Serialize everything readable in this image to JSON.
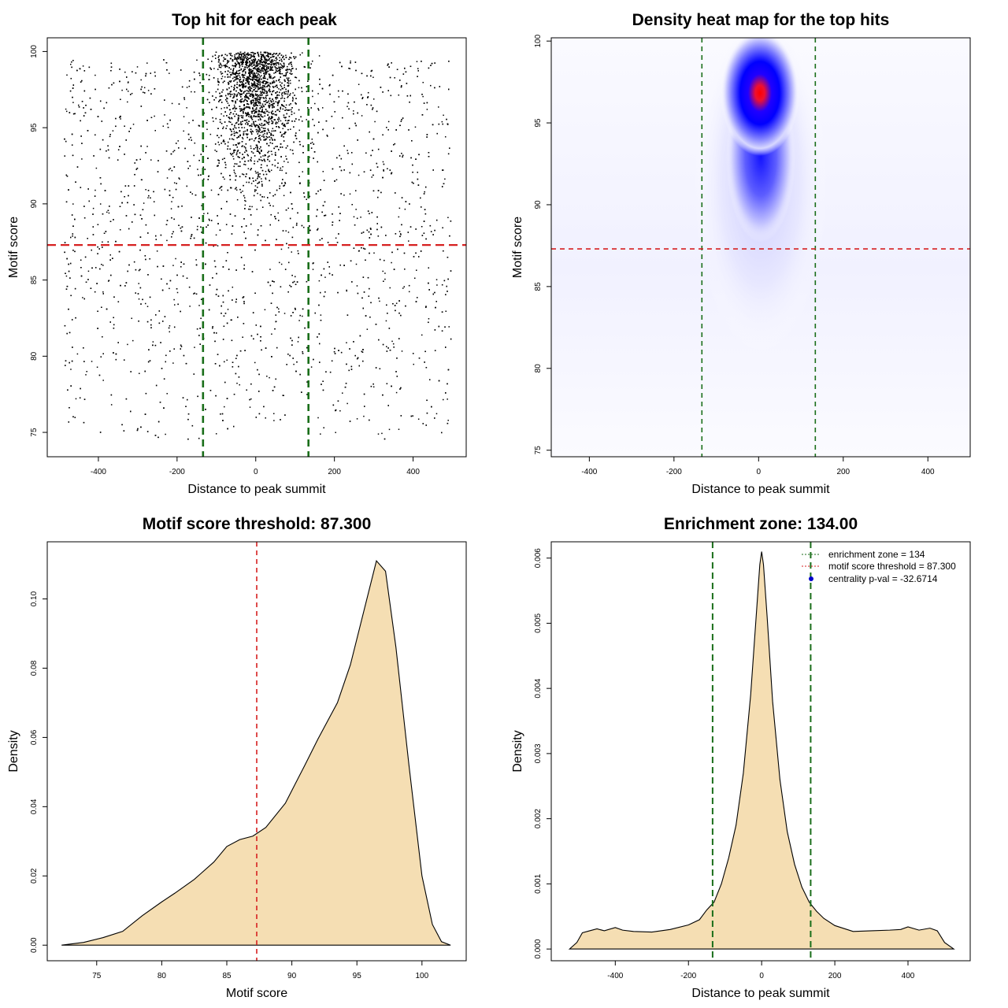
{
  "chart_data": [
    {
      "id": "scatter",
      "type": "scatter",
      "title": "Top hit for each peak",
      "xlabel": "Distance to peak summit",
      "ylabel": "Motif score",
      "xlim": [
        -530,
        535
      ],
      "ylim": [
        73.4,
        100.9
      ],
      "xticks": [
        -400,
        -200,
        0,
        200,
        400
      ],
      "yticks": [
        75,
        80,
        85,
        90,
        95,
        100
      ],
      "colors": {
        "points": "#000000",
        "zone": "#1a6e1a",
        "threshold": "#d62020"
      },
      "vlines": [
        -134,
        134
      ],
      "hline": 87.3,
      "points_description": "dense cluster near x=0 y 90-100, sparse uniform background",
      "n_points": 6500
    },
    {
      "id": "heatmap",
      "type": "heatmap",
      "title": "Density heat map for the top hits",
      "xlabel": "Distance to peak summit",
      "ylabel": "Motif score",
      "xlim": [
        -490,
        500
      ],
      "ylim": [
        74.6,
        100.2
      ],
      "xticks": [
        -400,
        -200,
        0,
        200,
        400
      ],
      "yticks": [
        75,
        80,
        85,
        90,
        95,
        100
      ],
      "colors": {
        "low": "#ffffff",
        "mid": "#0000ff",
        "high": "#ff0000",
        "zone": "#1a6e1a",
        "threshold": "#d62020"
      },
      "peak": {
        "x": 0,
        "y": 96.8
      },
      "vlines": [
        -134,
        134
      ],
      "hline": 87.3
    },
    {
      "id": "score_density",
      "type": "area",
      "title": "Motif score threshold: 87.300",
      "xlabel": "Motif score",
      "ylabel": "Density",
      "xlim": [
        71.2,
        103.4
      ],
      "ylim": [
        -0.0045,
        0.1165
      ],
      "xticks": [
        75,
        80,
        85,
        90,
        95,
        100
      ],
      "yticks": [
        0.0,
        0.02,
        0.04,
        0.06,
        0.08,
        0.1
      ],
      "ytick_labels": [
        "0.00",
        "0.02",
        "0.04",
        "0.06",
        "0.08",
        "0.10"
      ],
      "colors": {
        "fill": "#f5deb3",
        "line": "#000000",
        "threshold": "#d62020"
      },
      "vline": 87.3,
      "x": [
        72.3,
        74,
        75.5,
        77,
        78.5,
        80,
        81,
        82.5,
        84,
        85,
        86,
        87,
        88,
        89.5,
        91,
        92,
        93.5,
        94.5,
        95.5,
        96.5,
        97.2,
        98,
        99,
        100,
        100.8,
        101.5,
        102.2
      ],
      "y": [
        0.0,
        0.0008,
        0.0022,
        0.004,
        0.0085,
        0.0125,
        0.015,
        0.019,
        0.024,
        0.0285,
        0.0305,
        0.0315,
        0.034,
        0.041,
        0.052,
        0.0595,
        0.07,
        0.081,
        0.096,
        0.111,
        0.108,
        0.086,
        0.052,
        0.02,
        0.006,
        0.001,
        0.0
      ]
    },
    {
      "id": "distance_density",
      "type": "area",
      "title": "Enrichment zone: 134.00",
      "xlabel": "Distance to peak summit",
      "ylabel": "Density",
      "xlim": [
        -575,
        570
      ],
      "ylim": [
        -0.00018,
        0.00625
      ],
      "xticks": [
        -400,
        -200,
        0,
        200,
        400
      ],
      "yticks": [
        0.0,
        0.001,
        0.002,
        0.003,
        0.004,
        0.005,
        0.006
      ],
      "ytick_labels": [
        "0.000",
        "0.001",
        "0.002",
        "0.003",
        "0.004",
        "0.005",
        "0.006"
      ],
      "colors": {
        "fill": "#f5deb3",
        "line": "#000000",
        "zone": "#1a6e1a",
        "threshold": "#d62020",
        "point": "#0000cc"
      },
      "vlines": [
        -134,
        134
      ],
      "x": [
        -525,
        -505,
        -490,
        -470,
        -450,
        -430,
        -400,
        -380,
        -350,
        -300,
        -250,
        -200,
        -170,
        -150,
        -130,
        -110,
        -90,
        -70,
        -50,
        -30,
        -15,
        -5,
        0,
        5,
        15,
        30,
        50,
        70,
        90,
        110,
        130,
        150,
        170,
        200,
        250,
        300,
        350,
        380,
        400,
        430,
        460,
        480,
        500,
        525
      ],
      "y": [
        0.0,
        0.0001,
        0.00025,
        0.00028,
        0.00031,
        0.00028,
        0.00033,
        0.00029,
        0.00027,
        0.00026,
        0.0003,
        0.00037,
        0.00045,
        0.0006,
        0.00072,
        0.001,
        0.0014,
        0.0019,
        0.0027,
        0.0039,
        0.0051,
        0.0059,
        0.0061,
        0.0059,
        0.0051,
        0.0038,
        0.0026,
        0.0018,
        0.0013,
        0.00095,
        0.00072,
        0.00058,
        0.00047,
        0.00036,
        0.00027,
        0.00028,
        0.00029,
        0.0003,
        0.00034,
        0.00029,
        0.00032,
        0.00028,
        0.0001,
        0.0
      ],
      "legend": [
        {
          "label": "enrichment zone = 134",
          "style": "dotted",
          "color": "#1a6e1a"
        },
        {
          "label": "motif score threshold = 87.300",
          "style": "dotted",
          "color": "#d62020"
        },
        {
          "label": "centrality p-val = -32.6714",
          "style": "point",
          "color": "#0000cc"
        }
      ],
      "legend_position": "top-right"
    }
  ]
}
